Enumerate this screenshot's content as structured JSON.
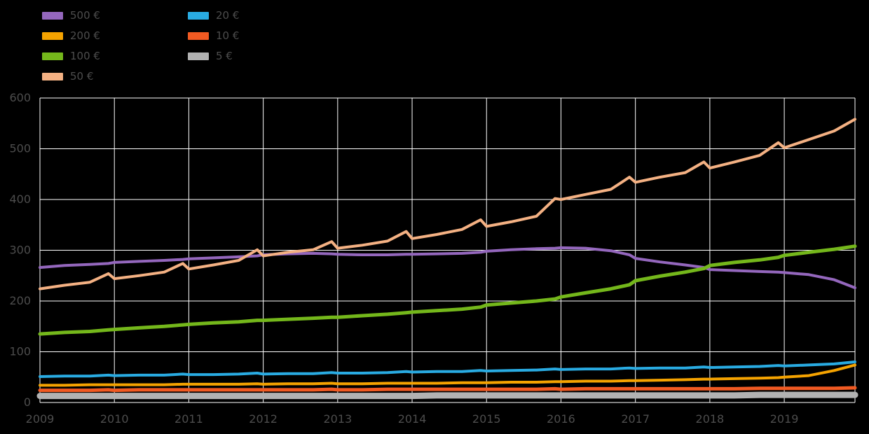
{
  "colors": {
    "background": "#000000",
    "grid": "#ffffff",
    "axis_text": "#4d4d4d",
    "legend_text": "#4d4d4d"
  },
  "axis": {
    "x_tick_values": [
      2009,
      2010,
      2011,
      2012,
      2013,
      2014,
      2015,
      2016,
      2017,
      2018,
      2019
    ],
    "x_tick_labels": [
      "2009",
      "2010",
      "2011",
      "2012",
      "2013",
      "2014",
      "2015",
      "2016",
      "2017",
      "2018",
      "2019"
    ],
    "y_tick_values": [
      0,
      100,
      200,
      300,
      400,
      500,
      600
    ],
    "y_tick_labels": [
      "0",
      "100",
      "200",
      "300",
      "400",
      "500",
      "600"
    ]
  },
  "chart_data": {
    "type": "line",
    "title": "",
    "xlabel": "",
    "ylabel": "",
    "xlim": [
      2009,
      2019.95
    ],
    "ylim": [
      0,
      600
    ],
    "grid": true,
    "legend_position": "top-left",
    "legend_columns": [
      4,
      3
    ],
    "x": [
      2009,
      2009.33,
      2009.67,
      2009.92,
      2010,
      2010.33,
      2010.67,
      2010.92,
      2011,
      2011.33,
      2011.67,
      2011.92,
      2012,
      2012.33,
      2012.67,
      2012.92,
      2013,
      2013.33,
      2013.67,
      2013.92,
      2014,
      2014.33,
      2014.67,
      2014.92,
      2015,
      2015.33,
      2015.67,
      2015.92,
      2016,
      2016.33,
      2016.67,
      2016.92,
      2017,
      2017.33,
      2017.67,
      2017.92,
      2018,
      2018.33,
      2018.67,
      2018.92,
      2019,
      2019.33,
      2019.67,
      2019.95
    ],
    "series": [
      {
        "name": "500 €",
        "color": "#9467bd",
        "width": 4,
        "values": [
          266,
          270,
          272,
          274,
          276,
          278,
          280,
          282,
          283,
          285,
          287,
          289,
          291,
          293,
          294,
          293,
          292,
          291,
          291,
          292,
          292,
          293,
          294,
          296,
          298,
          301,
          303,
          304,
          305,
          304,
          299,
          291,
          284,
          277,
          271,
          266,
          262,
          260,
          258,
          257,
          256,
          252,
          242,
          226
        ]
      },
      {
        "name": "200 €",
        "color": "#f5a300",
        "width": 4,
        "values": [
          34,
          34,
          35,
          35,
          35,
          35,
          35,
          36,
          36,
          36,
          36,
          37,
          36,
          37,
          37,
          38,
          37,
          37,
          38,
          38,
          38,
          38,
          39,
          39,
          39,
          40,
          40,
          41,
          41,
          42,
          42,
          43,
          43,
          44,
          45,
          46,
          46,
          47,
          48,
          49,
          50,
          53,
          63,
          74
        ]
      },
      {
        "name": "100 €",
        "color": "#74b71b",
        "width": 5,
        "values": [
          135,
          138,
          140,
          143,
          144,
          147,
          150,
          153,
          154,
          157,
          159,
          162,
          162,
          164,
          166,
          168,
          168,
          171,
          174,
          177,
          178,
          181,
          184,
          188,
          192,
          196,
          200,
          204,
          208,
          216,
          224,
          232,
          240,
          249,
          257,
          264,
          270,
          276,
          281,
          286,
          290,
          296,
          302,
          308
        ]
      },
      {
        "name": "50 €",
        "color": "#f4b183",
        "width": 4,
        "values": [
          224,
          231,
          237,
          254,
          244,
          250,
          257,
          274,
          263,
          271,
          280,
          301,
          289,
          296,
          301,
          317,
          304,
          310,
          318,
          337,
          323,
          331,
          341,
          360,
          347,
          356,
          367,
          402,
          400,
          410,
          420,
          444,
          434,
          444,
          453,
          474,
          462,
          474,
          487,
          512,
          502,
          518,
          535,
          558
        ]
      },
      {
        "name": "20 €",
        "color": "#29abe2",
        "width": 4,
        "values": [
          51,
          52,
          52,
          54,
          53,
          54,
          54,
          56,
          55,
          55,
          56,
          58,
          56,
          57,
          57,
          59,
          58,
          58,
          59,
          61,
          60,
          61,
          61,
          63,
          62,
          63,
          64,
          66,
          65,
          66,
          66,
          68,
          67,
          68,
          68,
          70,
          69,
          70,
          71,
          73,
          72,
          74,
          76,
          80
        ]
      },
      {
        "name": "10 €",
        "color": "#f15a22",
        "width": 5,
        "values": [
          24,
          24,
          24,
          25,
          24,
          25,
          25,
          25,
          25,
          25,
          25,
          25,
          25,
          25,
          25,
          26,
          25,
          25,
          26,
          26,
          26,
          26,
          26,
          26,
          26,
          26,
          26,
          27,
          26,
          27,
          27,
          27,
          27,
          27,
          27,
          27,
          27,
          27,
          28,
          28,
          28,
          28,
          28,
          29
        ]
      },
      {
        "name": "5 €",
        "color": "#b2b2b2",
        "width": 9,
        "values": [
          13,
          13,
          13,
          13,
          13,
          13,
          13,
          13,
          13,
          13,
          13,
          13,
          13,
          13,
          13,
          13,
          13,
          13,
          13,
          13,
          13,
          14,
          14,
          14,
          14,
          14,
          14,
          14,
          14,
          14,
          14,
          14,
          14,
          14,
          14,
          14,
          14,
          14,
          15,
          15,
          15,
          15,
          15,
          15
        ]
      }
    ]
  }
}
